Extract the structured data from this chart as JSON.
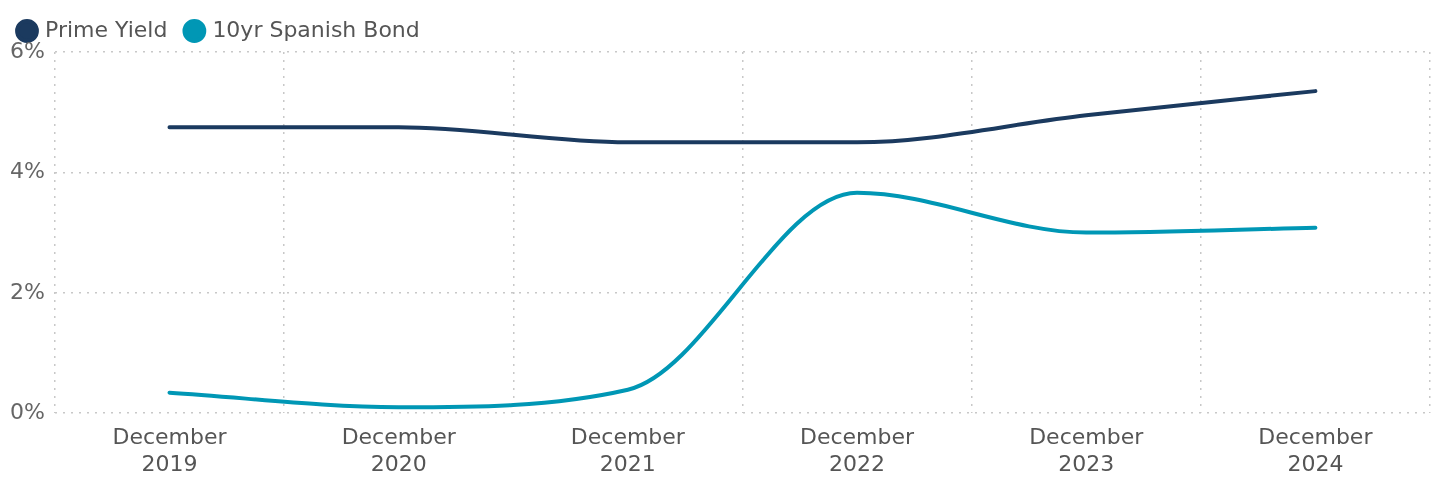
{
  "chart_data": {
    "type": "line",
    "categories": [
      "December 2019",
      "December 2020",
      "December 2021",
      "December 2022",
      "December 2023",
      "December 2024"
    ],
    "series": [
      {
        "name": "Prime Yield",
        "color": "#1b3a5f",
        "values": [
          4.75,
          4.75,
          4.5,
          4.5,
          4.95,
          5.35
        ]
      },
      {
        "name": "10yr Spanish Bond",
        "color": "#0097b5",
        "values": [
          0.34,
          0.1,
          0.39,
          3.66,
          3.0,
          3.08
        ]
      }
    ],
    "ylim": [
      0,
      6
    ],
    "yticks": [
      {
        "value": 0,
        "label": "0%"
      },
      {
        "value": 2,
        "label": "2%"
      },
      {
        "value": 4,
        "label": "4%"
      },
      {
        "value": 6,
        "label": "6%"
      }
    ],
    "grid": true,
    "legend": "top left",
    "marker": "none",
    "line_style": "solid"
  }
}
